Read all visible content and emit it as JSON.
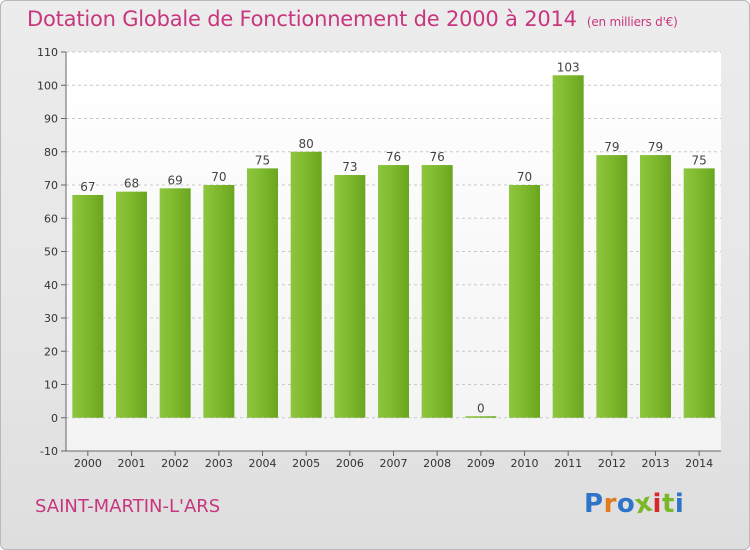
{
  "chart_data": {
    "type": "bar",
    "title": "Dotation Globale de Fonctionnement de 2000 à 2014",
    "subtitle": "(en milliers d'€)",
    "categories": [
      "2000",
      "2001",
      "2002",
      "2003",
      "2004",
      "2005",
      "2006",
      "2007",
      "2008",
      "2009",
      "2010",
      "2011",
      "2012",
      "2013",
      "2014"
    ],
    "values": [
      67,
      68,
      69,
      70,
      75,
      80,
      73,
      76,
      76,
      0,
      70,
      103,
      79,
      79,
      75
    ],
    "y_ticks": [
      -10,
      0,
      10,
      20,
      30,
      40,
      50,
      60,
      70,
      80,
      90,
      100,
      110
    ],
    "ylim": [
      -10,
      110
    ],
    "xlabel": "",
    "ylabel": "",
    "grid": "horizontal dashed",
    "legend": "none",
    "bar_color": "#7fba2e"
  },
  "footer": {
    "location": "SAINT-MARTIN-L'ARS",
    "logo_text": "Proxiti",
    "logo_colors": [
      "#2e75c9",
      "#e07b1f",
      "#2e75c9",
      "#7ab829",
      "#d8282e",
      "#7ab829",
      "#2e75c9"
    ]
  },
  "colors": {
    "title": "#c8367f",
    "background": "#e8e8e8"
  }
}
